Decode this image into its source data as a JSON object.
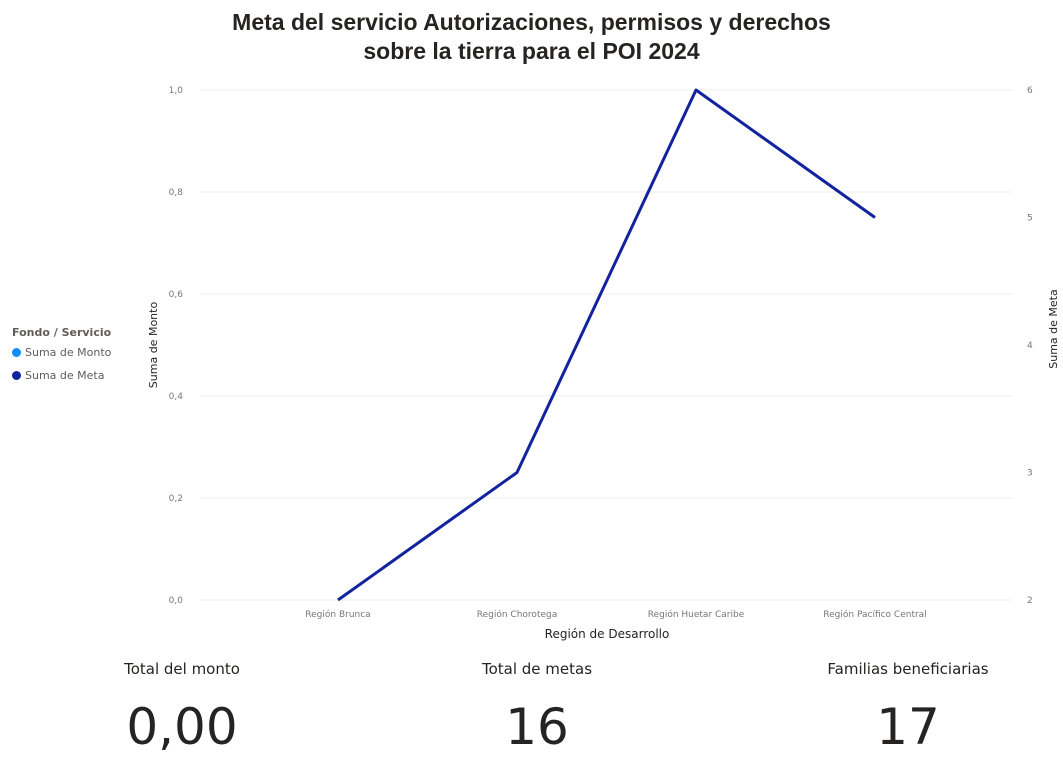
{
  "chart_data": {
    "type": "line",
    "title_lines": [
      "Meta del servicio Autorizaciones, permisos y derechos",
      "sobre la tierra para el POI 2024"
    ],
    "xlabel": "Región de Desarrollo",
    "ylabel_left": "Suma de Monto",
    "ylabel_right": "Suma de Meta",
    "legend_title": "Fondo / Servicio",
    "legend_position": "left",
    "categories": [
      "Región Brunca",
      "Región Chorotega",
      "Región Huetar Caribe",
      "Región Pacífico Central"
    ],
    "y_left_ticks": [
      "0,0",
      "0,2",
      "0,4",
      "0,6",
      "0,8",
      "1,0"
    ],
    "y_left_range": [
      0,
      1
    ],
    "y_right_ticks": [
      "2",
      "3",
      "4",
      "5",
      "6"
    ],
    "y_right_range": [
      2,
      6
    ],
    "grid": true,
    "series": [
      {
        "name": "Suma de Monto",
        "axis": "left",
        "values": [
          0,
          0,
          0,
          0
        ],
        "color": "#118DFF"
      },
      {
        "name": "Suma de Meta",
        "axis": "right",
        "values": [
          2,
          3,
          6,
          5
        ],
        "color": "#12239E"
      }
    ]
  },
  "cards": [
    {
      "label": "Total del monto",
      "value": "0,00"
    },
    {
      "label": "Total de metas",
      "value": "16"
    },
    {
      "label": "Familias beneficiarias",
      "value": "17"
    }
  ]
}
